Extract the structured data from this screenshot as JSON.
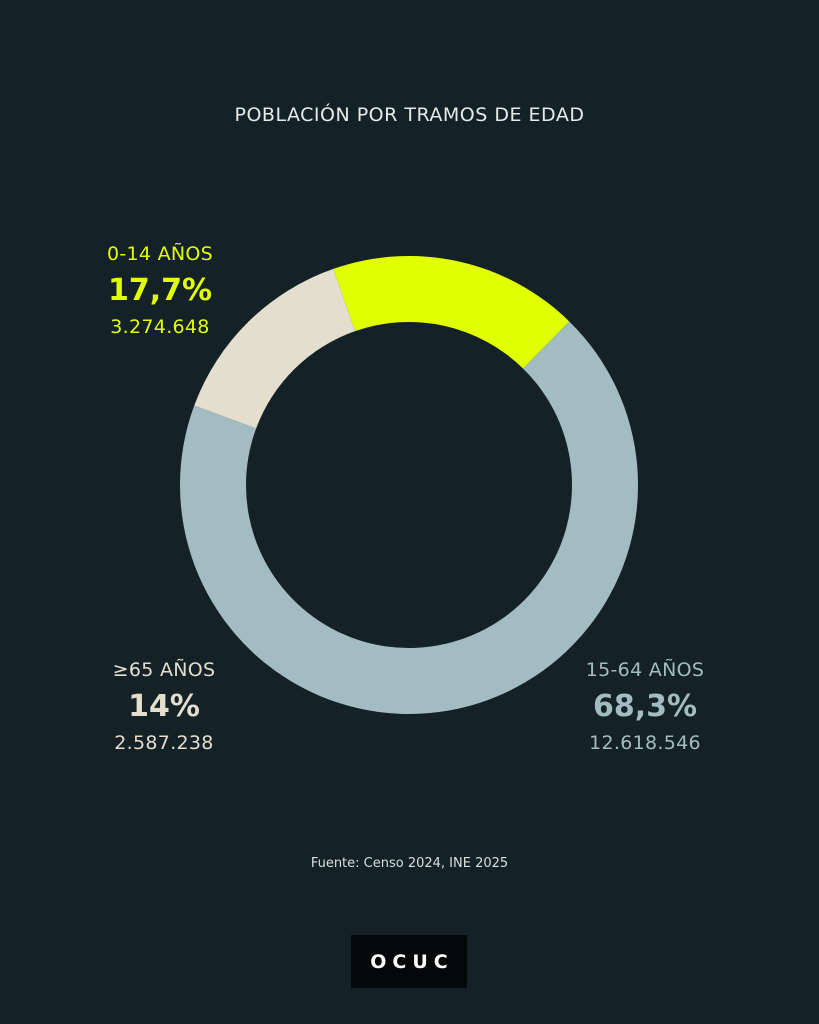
{
  "chart_data": {
    "type": "pie",
    "title": "POBLACIÓN POR TRAMOS DE EDAD",
    "slices": [
      {
        "label": "0-14 AÑOS",
        "percent_label": "17,7%",
        "value": 17.7,
        "count": "3.274.648",
        "color": "#e2ff00"
      },
      {
        "label": "15-64 AÑOS",
        "percent_label": "68,3%",
        "value": 68.3,
        "count": "12.618.546",
        "color": "#a3bcc2"
      },
      {
        "label": "≥65 AÑOS",
        "percent_label": "14%",
        "value": 14.0,
        "count": "2.587.238",
        "color": "#e3dece"
      }
    ]
  },
  "source": "Fuente: Censo 2024, INE 2025",
  "logo": "OCUC",
  "colors": {
    "background": "#142126"
  }
}
